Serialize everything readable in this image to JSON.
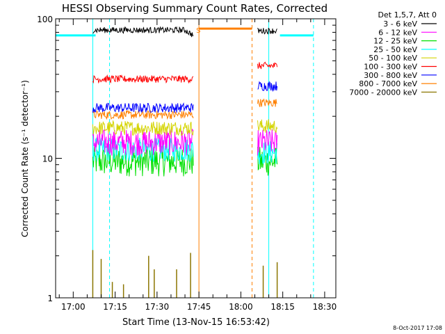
{
  "chart_data": {
    "type": "line",
    "title": "HESSI Observing Summary Count Rates, Corrected",
    "xlabel": "Start Time (13-Nov-15 16:53:42)",
    "ylabel": "Corrected Count Rate (s⁻¹ detector⁻¹)",
    "scale": {
      "y": "log"
    },
    "ylim": [
      1,
      100
    ],
    "xlim": [
      "16:53:42",
      "18:34:00"
    ],
    "x_ticks": [
      "17:00",
      "17:15",
      "17:30",
      "17:45",
      "18:00",
      "18:15",
      "18:30"
    ],
    "y_ticks": [
      "1",
      "10",
      "100"
    ],
    "legend": {
      "title": "Det 1,5,7, Att 0",
      "placement": "top-right-outside",
      "entries": [
        {
          "label": "3 - 6 keV",
          "color": "#000000"
        },
        {
          "label": "6 - 12 keV",
          "color": "#ff00ff"
        },
        {
          "label": "12 - 25 keV",
          "color": "#00e000"
        },
        {
          "label": "25 - 50 keV",
          "color": "#00ffff"
        },
        {
          "label": "50 - 100 keV",
          "color": "#d4d400"
        },
        {
          "label": "100 - 300 keV",
          "color": "#ff0000"
        },
        {
          "label": "300 - 800 keV",
          "color": "#0000ff"
        },
        {
          "label": "800 - 7000 keV",
          "color": "#ff8000"
        },
        {
          "label": "7000 - 20000 keV",
          "color": "#8b7500"
        }
      ]
    },
    "segments": [
      {
        "start": "17:07",
        "end": "17:43"
      },
      {
        "start": "18:06",
        "end": "18:13"
      }
    ],
    "series": [
      {
        "name": "3 - 6 keV",
        "color": "#000000",
        "level": 83,
        "noise": 0.05,
        "seg_levels": [
          83,
          82
        ],
        "end_level": 76
      },
      {
        "name": "6 - 12 keV",
        "color": "#ff00ff",
        "level": 13,
        "noise": 0.22,
        "seg_levels": [
          13,
          13
        ]
      },
      {
        "name": "12 - 25 keV",
        "color": "#00e000",
        "level": 9.5,
        "noise": 0.25,
        "seg_levels": [
          9.5,
          9.5
        ]
      },
      {
        "name": "25 - 50 keV",
        "color": "#00ffff",
        "level": 11.5,
        "noise": 0.2,
        "seg_levels": [
          11.5,
          11
        ]
      },
      {
        "name": "50 - 100 keV",
        "color": "#d4d400",
        "level": 16.5,
        "noise": 0.12,
        "seg_levels": [
          16.5,
          17
        ]
      },
      {
        "name": "100 - 300 keV",
        "color": "#ff0000",
        "level": 37,
        "noise": 0.06,
        "seg_levels": [
          37,
          46
        ]
      },
      {
        "name": "300 - 800 keV",
        "color": "#0000ff",
        "level": 23,
        "noise": 0.08,
        "seg_levels": [
          23,
          33
        ]
      },
      {
        "name": "800 - 7000 keV",
        "color": "#ff8000",
        "level": 20.5,
        "noise": 0.07,
        "seg_levels": [
          20.5,
          25
        ]
      },
      {
        "name": "7000 - 20000 keV",
        "color": "#8b7500",
        "level": 1,
        "spikes": [
          {
            "t": "17:07",
            "y": 2.2
          },
          {
            "t": "17:10",
            "y": 1.9
          },
          {
            "t": "17:14",
            "y": 1.3
          },
          {
            "t": "17:18",
            "y": 1.25
          },
          {
            "t": "17:27",
            "y": 2.0
          },
          {
            "t": "17:29",
            "y": 1.6
          },
          {
            "t": "17:37",
            "y": 1.6
          },
          {
            "t": "17:42",
            "y": 2.1
          },
          {
            "t": "18:08",
            "y": 1.7
          },
          {
            "t": "18:13",
            "y": 1.8
          }
        ]
      }
    ],
    "flags": [
      {
        "label": "cyan level",
        "color": "#00ffff",
        "value": 76,
        "ranges": [
          [
            "16:53:42",
            "17:08"
          ],
          [
            "18:14",
            "18:26"
          ]
        ]
      },
      {
        "label": "orange level",
        "color": "#ff8000",
        "value": 85,
        "ranges": [
          [
            "17:45",
            "18:04"
          ]
        ]
      }
    ],
    "vlines": [
      {
        "t": "17:07",
        "color": "#00ffff",
        "style": "solid"
      },
      {
        "t": "17:13",
        "color": "#00ffff",
        "style": "dashed"
      },
      {
        "t": "17:45",
        "color": "#ff8000",
        "style": "solid"
      },
      {
        "t": "18:04",
        "color": "#ff8000",
        "style": "dashed"
      },
      {
        "t": "18:10",
        "color": "#00ffff",
        "style": "solid"
      },
      {
        "t": "18:26",
        "color": "#00ffff",
        "style": "dashed"
      }
    ],
    "annotations": [
      {
        "text": "S",
        "t": "17:43",
        "y": 85,
        "color": "#ff8000"
      }
    ]
  },
  "footer": {
    "date_stamp": "8-Oct-2017 17:08"
  }
}
